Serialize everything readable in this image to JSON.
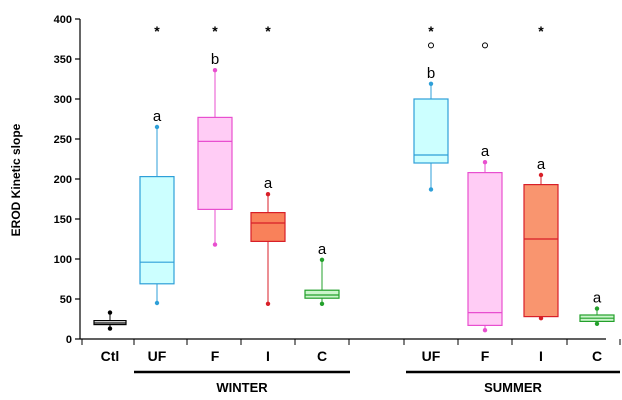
{
  "chart_data": {
    "type": "box",
    "ylabel": "EROD Kinetic slope",
    "ylim": [
      0,
      400
    ],
    "yticks": [
      0,
      50,
      100,
      150,
      200,
      250,
      300,
      350,
      400
    ],
    "grid": false,
    "groups": [
      {
        "label": "WINTER",
        "categories": [
          "UF",
          "F",
          "I",
          "C"
        ]
      },
      {
        "label": "SUMMER",
        "categories": [
          "UF",
          "F",
          "I",
          "C"
        ]
      }
    ],
    "boxes": [
      {
        "category": "Ctl",
        "group": "",
        "min": 13,
        "q1": 18,
        "median": 20,
        "q3": 23,
        "max": 33,
        "outliers": [],
        "letter": "",
        "star": false,
        "fill": "#ffffff",
        "stroke": "#000000"
      },
      {
        "category": "UF",
        "group": "WINTER",
        "min": 45,
        "q1": 69,
        "median": 96,
        "q3": 203,
        "max": 265,
        "outliers": [],
        "letter": "a",
        "star": true,
        "fill": "#ccffff",
        "stroke": "#2e9fd8"
      },
      {
        "category": "F",
        "group": "WINTER",
        "min": 118,
        "q1": 162,
        "median": 247,
        "q3": 277,
        "max": 336,
        "outliers": [],
        "letter": "b",
        "star": true,
        "fill": "#ffccf5",
        "stroke": "#e84fcf"
      },
      {
        "category": "I",
        "group": "WINTER",
        "min": 44,
        "q1": 122,
        "median": 145,
        "q3": 158,
        "max": 181,
        "outliers": [],
        "letter": "a",
        "star": true,
        "fill": "#f9815a",
        "stroke": "#d81f28"
      },
      {
        "category": "C",
        "group": "WINTER",
        "min": 44,
        "q1": 51,
        "median": 55,
        "q3": 61,
        "max": 99,
        "outliers": [],
        "letter": "a",
        "star": false,
        "fill": "#ccf5cc",
        "stroke": "#23a02b"
      },
      {
        "category": "UF",
        "group": "SUMMER",
        "min": 187,
        "q1": 220,
        "median": 230,
        "q3": 300,
        "max": 319,
        "outliers": [
          367
        ],
        "letter": "b",
        "star": true,
        "fill": "#ccffff",
        "stroke": "#2e9fd8"
      },
      {
        "category": "F",
        "group": "SUMMER",
        "min": 11,
        "q1": 17,
        "median": 33,
        "q3": 208,
        "max": 221,
        "outliers": [
          367
        ],
        "letter": "a",
        "star": false,
        "fill": "#ffccf5",
        "stroke": "#e84fcf"
      },
      {
        "category": "I",
        "group": "SUMMER",
        "min": 26,
        "q1": 28,
        "median": 125,
        "q3": 193,
        "max": 205,
        "outliers": [],
        "letter": "a",
        "star": true,
        "fill": "#f9956f",
        "stroke": "#d81f28"
      },
      {
        "category": "C",
        "group": "SUMMER",
        "min": 19,
        "q1": 22,
        "median": 26,
        "q3": 30,
        "max": 38,
        "outliers": [],
        "letter": "a",
        "star": false,
        "fill": "#ccf5cc",
        "stroke": "#23a02b"
      }
    ],
    "annotation_marks": {
      "star": "*"
    }
  }
}
